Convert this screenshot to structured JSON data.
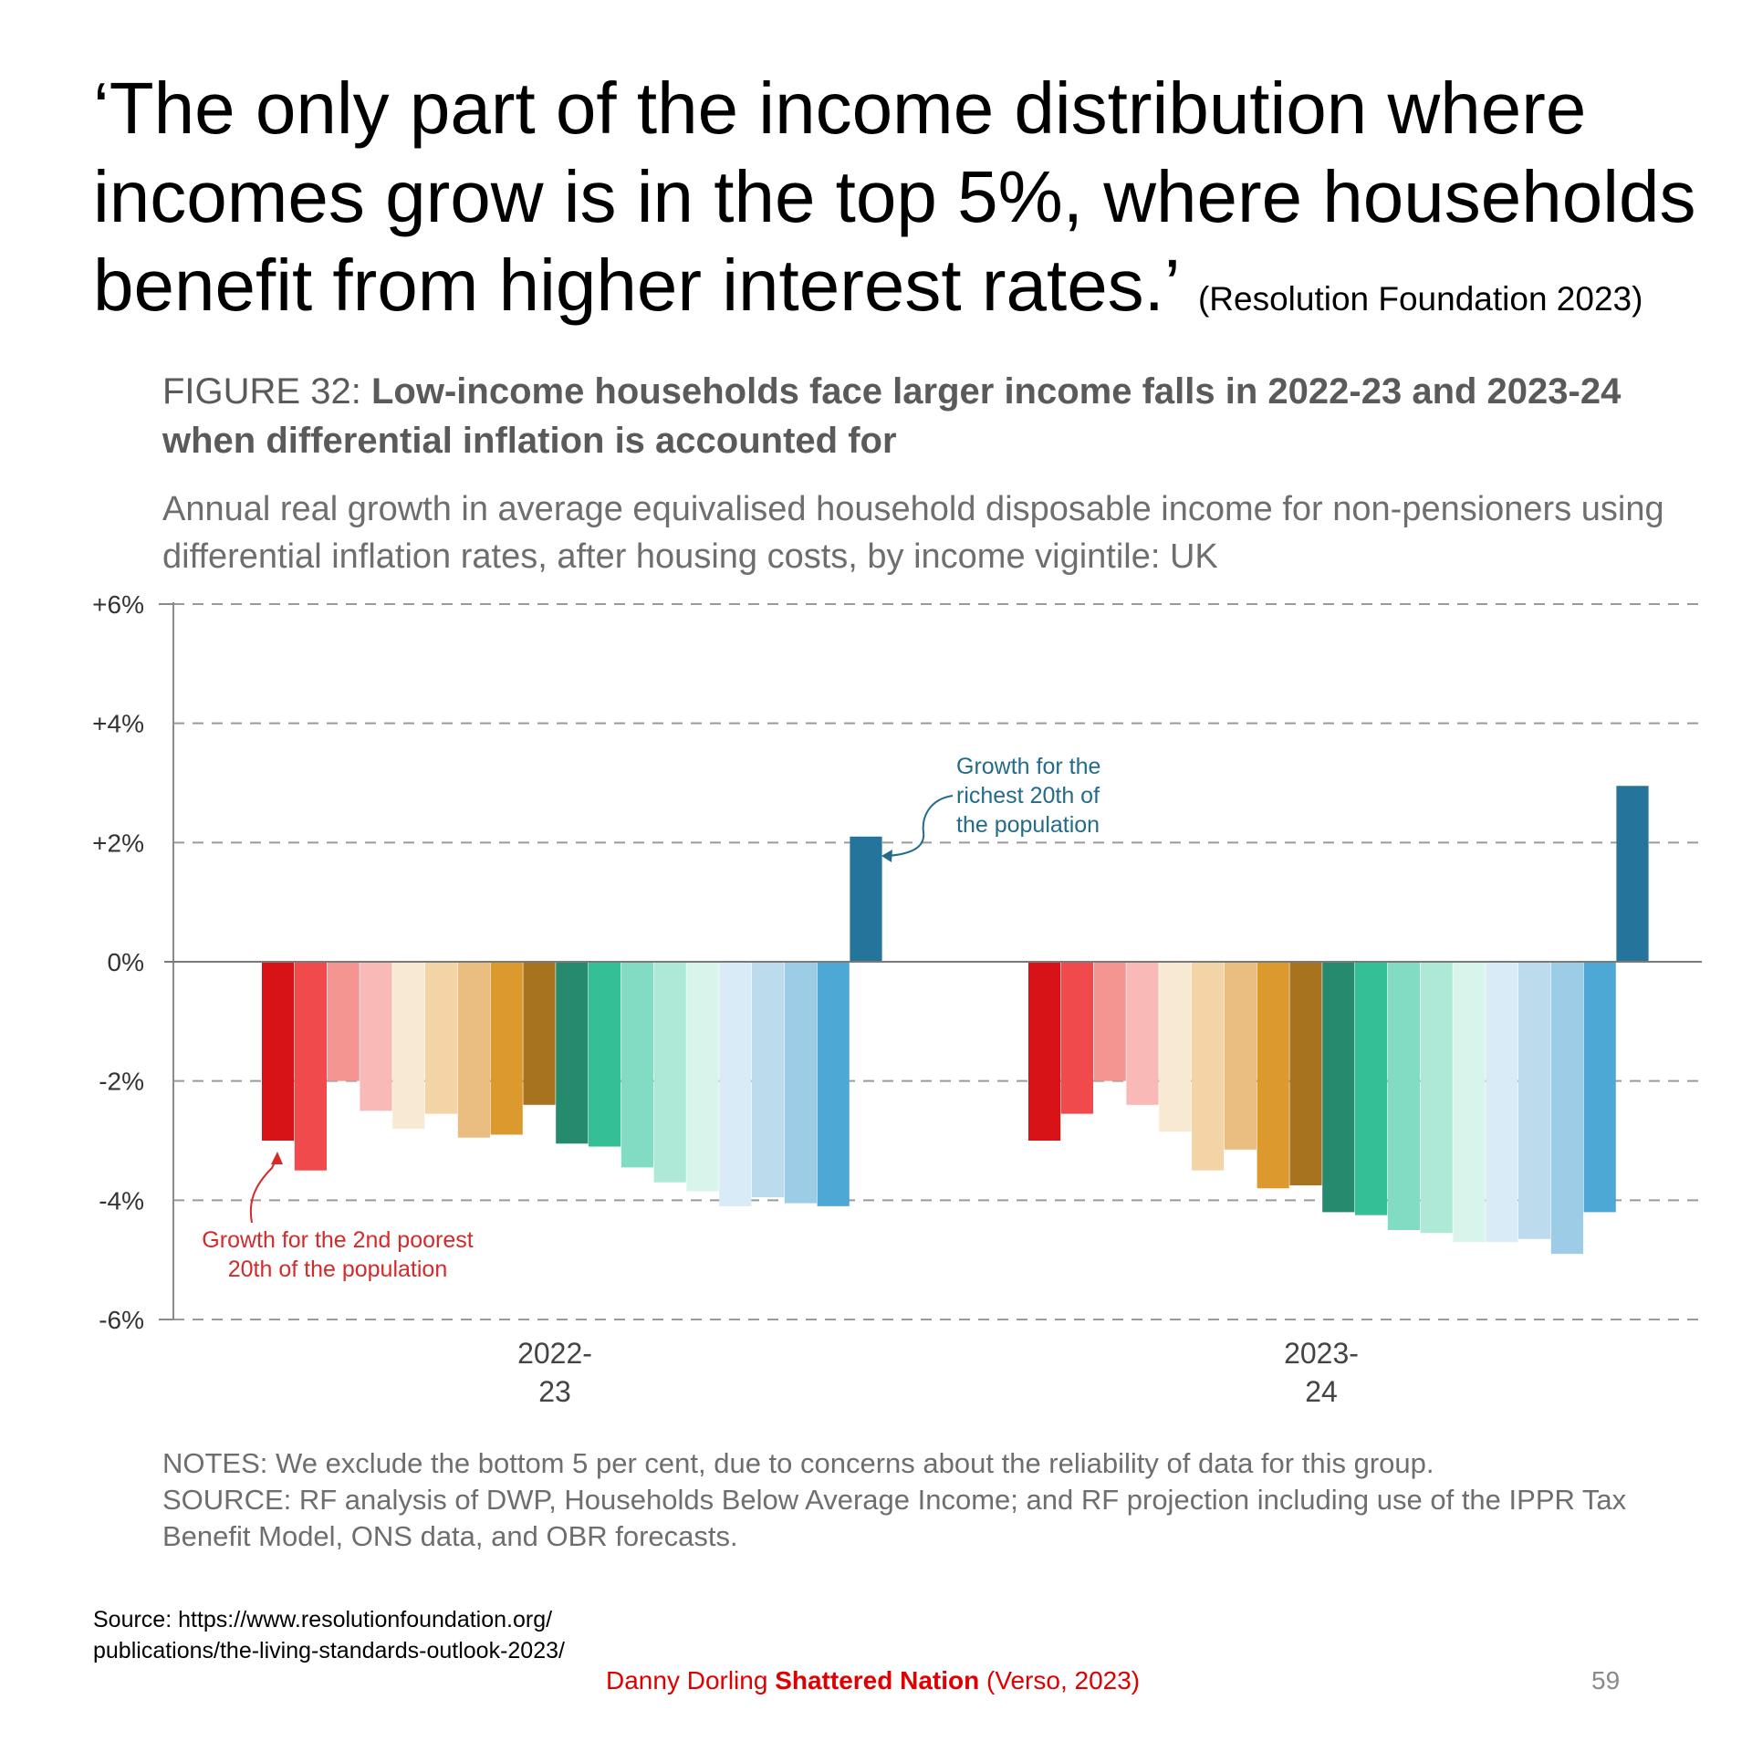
{
  "slide": {
    "headline": "‘The only part of the income distribution where incomes grow is in the top 5%, where households benefit from higher interest rates.’",
    "headline_attribution": "(Resolution Foundation 2023)",
    "source_line_1": "Source: https://www.resolutionfoundation.org/",
    "source_line_2": "publications/the-living-standards-outlook-2023/",
    "book_author": "Danny Dorling",
    "book_title": "Shattered Nation",
    "book_publisher": "(Verso, 2023)",
    "page_number": "59"
  },
  "figure": {
    "label": "FIGURE 32:",
    "title": "Low-income households face larger income falls in 2022-23 and 2023-24 when differential inflation is accounted for",
    "subtitle": "Annual real growth in average equivalised household disposable income for non-pensioners using differential inflation rates, after housing costs, by income vigintile: UK",
    "notes": "NOTES: We exclude the bottom 5 per cent, due to concerns about the reliability of data for this group.",
    "source": "SOURCE: RF analysis of DWP, Households Below Average Income; and RF projection including use of the IPPR Tax Benefit Model, ONS data, and OBR forecasts."
  },
  "chart_data": {
    "type": "bar",
    "title": "Low-income households face larger income falls in 2022-23 and 2023-24 when differential inflation is accounted for",
    "xlabel": "",
    "ylabel": "",
    "ylim": [
      -6,
      6
    ],
    "yticks": [
      6,
      4,
      2,
      0,
      -2,
      -4,
      -6
    ],
    "ytick_labels": [
      "+6%",
      "+4%",
      "+2%",
      "0%",
      "-2%",
      "-4%",
      "-6%"
    ],
    "grid": true,
    "legend": "none",
    "categories": [
      "2022-23",
      "2023-24"
    ],
    "category_labels": [
      [
        "2022-",
        "23"
      ],
      [
        "2023-",
        "24"
      ]
    ],
    "bar_colors": [
      "#d81318",
      "#f04a4c",
      "#f59592",
      "#f8b9b7",
      "#f8e9d2",
      "#f2d4a6",
      "#e9be80",
      "#dc9a2e",
      "#a8731f",
      "#258a6e",
      "#34bf96",
      "#82dcc3",
      "#aee9d8",
      "#d7f5ea",
      "#d8ebf6",
      "#bcdcee",
      "#9dcde6",
      "#4ea8d6",
      "#24749b"
    ],
    "groups": [
      {
        "category": "2022-23",
        "values": [
          -3.0,
          -3.5,
          -2.0,
          -2.5,
          -2.8,
          -2.55,
          -2.95,
          -2.9,
          -2.4,
          -3.05,
          -3.1,
          -3.45,
          -3.7,
          -3.85,
          -4.1,
          -3.95,
          -4.05,
          -4.1,
          2.1
        ]
      },
      {
        "category": "2023-24",
        "values": [
          -3.0,
          -2.55,
          -2.0,
          -2.4,
          -2.85,
          -3.5,
          -3.15,
          -3.8,
          -3.75,
          -4.2,
          -4.25,
          -4.5,
          -4.55,
          -4.7,
          -4.7,
          -4.65,
          -4.9,
          -4.2,
          2.95
        ]
      }
    ],
    "annotations": [
      {
        "text_lines": [
          "Growth for the",
          "richest 20th of",
          "the population"
        ],
        "color": "#246b8a"
      },
      {
        "text_lines": [
          "Growth for the 2nd poorest",
          "20th of the population"
        ],
        "color": "#d42a2a"
      }
    ]
  }
}
